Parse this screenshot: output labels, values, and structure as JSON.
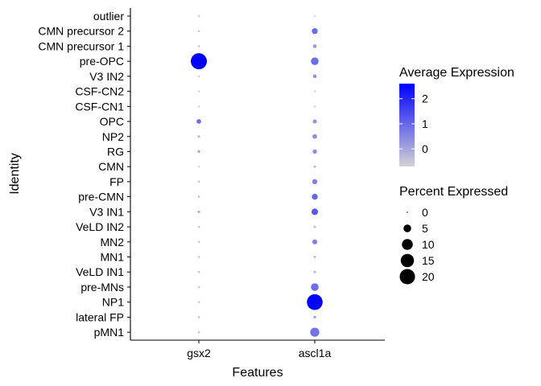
{
  "chart_data": {
    "type": "scatter",
    "subtype": "dot-plot",
    "xlabel": "Features",
    "ylabel": "Identity",
    "features": [
      "gsx2",
      "ascl1a"
    ],
    "identities": [
      "pMN1",
      "lateral FP",
      "NP1",
      "pre-MNs",
      "VeLD IN1",
      "MN1",
      "MN2",
      "VeLD IN2",
      "V3 IN1",
      "pre-CMN",
      "FP",
      "CMN",
      "RG",
      "NP2",
      "OPC",
      "CSF-CN1",
      "CSF-CN2",
      "V3 IN2",
      "pre-OPC",
      "CMN precursor 1",
      "CMN precursor 2",
      "outlier"
    ],
    "points": [
      {
        "identity": "outlier",
        "feature": "gsx2",
        "avg_exp": -0.6,
        "pct": 0.4
      },
      {
        "identity": "outlier",
        "feature": "ascl1a",
        "avg_exp": -0.7,
        "pct": 0.3
      },
      {
        "identity": "CMN precursor 2",
        "feature": "gsx2",
        "avg_exp": -0.5,
        "pct": 0.4
      },
      {
        "identity": "CMN precursor 2",
        "feature": "ascl1a",
        "avg_exp": 0.9,
        "pct": 3.0
      },
      {
        "identity": "CMN precursor 1",
        "feature": "gsx2",
        "avg_exp": -0.5,
        "pct": 0.4
      },
      {
        "identity": "CMN precursor 1",
        "feature": "ascl1a",
        "avg_exp": 0.2,
        "pct": 1.2
      },
      {
        "identity": "pre-OPC",
        "feature": "gsx2",
        "avg_exp": 2.6,
        "pct": 22
      },
      {
        "identity": "pre-OPC",
        "feature": "ascl1a",
        "avg_exp": 0.9,
        "pct": 5.0
      },
      {
        "identity": "V3 IN2",
        "feature": "gsx2",
        "avg_exp": -0.6,
        "pct": 0.3
      },
      {
        "identity": "V3 IN2",
        "feature": "ascl1a",
        "avg_exp": 0.3,
        "pct": 1.2
      },
      {
        "identity": "CSF-CN2",
        "feature": "gsx2",
        "avg_exp": -0.6,
        "pct": 0.3
      },
      {
        "identity": "CSF-CN2",
        "feature": "ascl1a",
        "avg_exp": -0.6,
        "pct": 0.3
      },
      {
        "identity": "CSF-CN1",
        "feature": "gsx2",
        "avg_exp": -0.6,
        "pct": 0.3
      },
      {
        "identity": "CSF-CN1",
        "feature": "ascl1a",
        "avg_exp": -0.6,
        "pct": 0.3
      },
      {
        "identity": "OPC",
        "feature": "gsx2",
        "avg_exp": 0.9,
        "pct": 1.8
      },
      {
        "identity": "OPC",
        "feature": "ascl1a",
        "avg_exp": 0.3,
        "pct": 1.4
      },
      {
        "identity": "NP2",
        "feature": "gsx2",
        "avg_exp": -0.2,
        "pct": 0.5
      },
      {
        "identity": "NP2",
        "feature": "ascl1a",
        "avg_exp": 0.4,
        "pct": 1.8
      },
      {
        "identity": "RG",
        "feature": "gsx2",
        "avg_exp": 0.1,
        "pct": 0.6
      },
      {
        "identity": "RG",
        "feature": "ascl1a",
        "avg_exp": 0.4,
        "pct": 1.6
      },
      {
        "identity": "CMN",
        "feature": "gsx2",
        "avg_exp": -0.6,
        "pct": 0.3
      },
      {
        "identity": "CMN",
        "feature": "ascl1a",
        "avg_exp": -0.3,
        "pct": 0.5
      },
      {
        "identity": "FP",
        "feature": "gsx2",
        "avg_exp": -0.4,
        "pct": 0.4
      },
      {
        "identity": "FP",
        "feature": "ascl1a",
        "avg_exp": 0.6,
        "pct": 2.2
      },
      {
        "identity": "pre-CMN",
        "feature": "gsx2",
        "avg_exp": -0.4,
        "pct": 0.4
      },
      {
        "identity": "pre-CMN",
        "feature": "ascl1a",
        "avg_exp": 1.0,
        "pct": 3.0
      },
      {
        "identity": "V3 IN1",
        "feature": "gsx2",
        "avg_exp": -0.2,
        "pct": 0.6
      },
      {
        "identity": "V3 IN1",
        "feature": "ascl1a",
        "avg_exp": 1.2,
        "pct": 3.6
      },
      {
        "identity": "VeLD IN2",
        "feature": "gsx2",
        "avg_exp": -0.5,
        "pct": 0.4
      },
      {
        "identity": "VeLD IN2",
        "feature": "ascl1a",
        "avg_exp": -0.3,
        "pct": 0.5
      },
      {
        "identity": "MN2",
        "feature": "gsx2",
        "avg_exp": -0.5,
        "pct": 0.4
      },
      {
        "identity": "MN2",
        "feature": "ascl1a",
        "avg_exp": 0.6,
        "pct": 2.0
      },
      {
        "identity": "MN1",
        "feature": "gsx2",
        "avg_exp": -0.5,
        "pct": 0.4
      },
      {
        "identity": "MN1",
        "feature": "ascl1a",
        "avg_exp": -0.3,
        "pct": 0.5
      },
      {
        "identity": "VeLD IN1",
        "feature": "gsx2",
        "avg_exp": -0.5,
        "pct": 0.4
      },
      {
        "identity": "VeLD IN1",
        "feature": "ascl1a",
        "avg_exp": -0.2,
        "pct": 0.5
      },
      {
        "identity": "pre-MNs",
        "feature": "gsx2",
        "avg_exp": -0.5,
        "pct": 0.4
      },
      {
        "identity": "pre-MNs",
        "feature": "ascl1a",
        "avg_exp": 0.9,
        "pct": 5.0
      },
      {
        "identity": "NP1",
        "feature": "gsx2",
        "avg_exp": -0.5,
        "pct": 0.4
      },
      {
        "identity": "NP1",
        "feature": "ascl1a",
        "avg_exp": 2.6,
        "pct": 21
      },
      {
        "identity": "lateral FP",
        "feature": "gsx2",
        "avg_exp": -0.4,
        "pct": 0.4
      },
      {
        "identity": "lateral FP",
        "feature": "ascl1a",
        "avg_exp": 0.0,
        "pct": 0.7
      },
      {
        "identity": "pMN1",
        "feature": "gsx2",
        "avg_exp": -0.4,
        "pct": 0.4
      },
      {
        "identity": "pMN1",
        "feature": "ascl1a",
        "avg_exp": 0.8,
        "pct": 7.0
      }
    ],
    "color_legend": {
      "title": "Average Expression",
      "ticks": [
        0,
        1,
        2
      ],
      "range": [
        -0.7,
        2.6
      ],
      "low_color": "#D3D3D3",
      "high_color": "#0000FF"
    },
    "size_legend": {
      "title": "Percent Expressed",
      "values": [
        0,
        5,
        10,
        15,
        20
      ],
      "labels": [
        "0",
        "5",
        "10",
        "15",
        "20"
      ]
    },
    "grid": false,
    "legend_position": "right"
  }
}
